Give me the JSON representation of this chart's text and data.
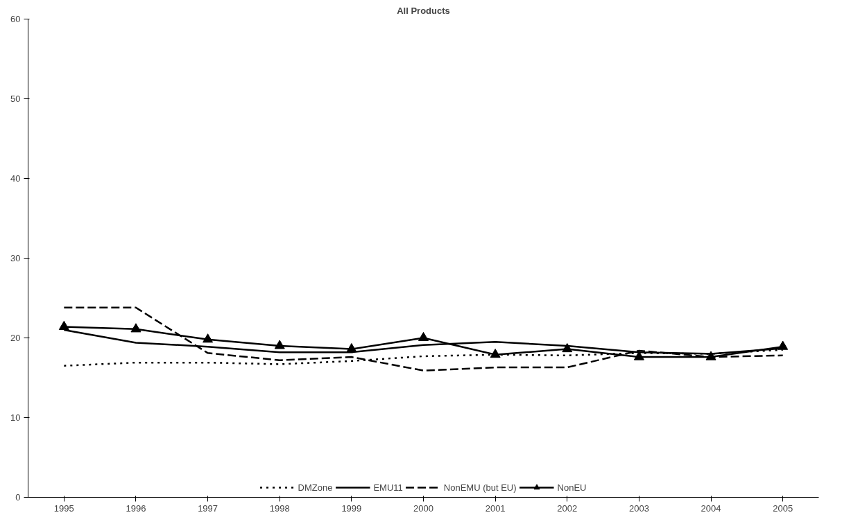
{
  "chart_data": {
    "type": "line",
    "title": "All Products",
    "categories": [
      "1995",
      "1996",
      "1997",
      "1998",
      "1999",
      "2000",
      "2001",
      "2002",
      "2003",
      "2004",
      "2005"
    ],
    "series": [
      {
        "name": "DMZone",
        "color": "#000000",
        "line_style": "dotted",
        "marker": "none",
        "values": [
          16.5,
          16.9,
          16.9,
          16.7,
          17.1,
          17.7,
          17.9,
          17.8,
          18.1,
          18.0,
          18.5
        ]
      },
      {
        "name": "EMU11",
        "color": "#000000",
        "line_style": "solid",
        "marker": "none",
        "values": [
          21.0,
          19.4,
          18.9,
          18.2,
          18.2,
          19.1,
          19.5,
          19.0,
          18.2,
          18.0,
          18.7
        ]
      },
      {
        "name": "NonEMU (but EU)",
        "color": "#000000",
        "line_style": "dashed",
        "marker": "none",
        "values": [
          23.8,
          23.8,
          18.1,
          17.2,
          17.6,
          15.9,
          16.3,
          16.3,
          18.4,
          17.6,
          17.8
        ]
      },
      {
        "name": "NonEU",
        "color": "#000000",
        "line_style": "solid",
        "marker": "triangle",
        "values": [
          21.4,
          21.1,
          19.8,
          19.0,
          18.6,
          20.0,
          17.9,
          18.6,
          17.6,
          17.6,
          18.9
        ]
      }
    ],
    "ylim": [
      0,
      60
    ],
    "yticks": [
      0,
      10,
      20,
      30,
      40,
      50,
      60
    ],
    "grid": false,
    "legend": "bottom"
  }
}
